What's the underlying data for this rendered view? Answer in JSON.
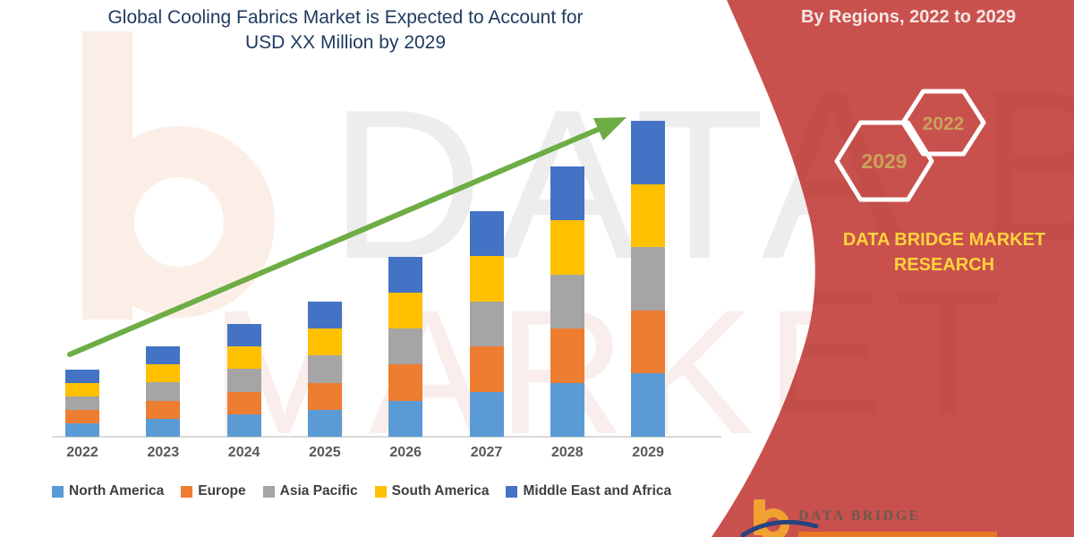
{
  "header": {
    "title_line1": "Global Cooling Fabrics Market is Expected to Account for",
    "title_line2": "USD XX Million by 2029",
    "banner": "By Regions, 2022 to 2029"
  },
  "side_panel": {
    "background_color": "#c9514d",
    "hexagons": [
      {
        "label": "2029"
      },
      {
        "label": "2022"
      }
    ],
    "brand_line1": "DATA BRIDGE MARKET",
    "brand_line2": "RESEARCH",
    "brand_color": "#ffd33c"
  },
  "watermark": {
    "line1": "DATA BRIDGE",
    "line2": "MARKET RESEARCH"
  },
  "footer": {
    "brand": "DATA BRIDGE",
    "logo_icon": "data-bridge-b-logo"
  },
  "chart_data": {
    "type": "bar",
    "stacked": true,
    "title": "Global Cooling Fabrics Market is Expected to Account for USD XX Million by 2029",
    "subtitle": "By Regions, 2022 to 2029",
    "categories": [
      "2022",
      "2023",
      "2024",
      "2025",
      "2026",
      "2027",
      "2028",
      "2029"
    ],
    "series": [
      {
        "name": "North America",
        "color": "#5b9bd5",
        "values": [
          15,
          20,
          25,
          30,
          40,
          50,
          60,
          70
        ]
      },
      {
        "name": "Europe",
        "color": "#ed7d31",
        "values": [
          15,
          20,
          25,
          30,
          40,
          50,
          60,
          70
        ]
      },
      {
        "name": "Asia Pacific",
        "color": "#a5a5a5",
        "values": [
          15,
          20,
          25,
          30,
          40,
          50,
          60,
          70
        ]
      },
      {
        "name": "South America",
        "color": "#ffc000",
        "values": [
          15,
          20,
          25,
          30,
          40,
          50,
          60,
          70
        ]
      },
      {
        "name": "Middle East and Africa",
        "color": "#4472c4",
        "values": [
          15,
          20,
          25,
          30,
          40,
          50,
          60,
          70
        ]
      }
    ],
    "totals": [
      75,
      100,
      125,
      150,
      200,
      250,
      300,
      350
    ],
    "values_note": "Y axis unlabeled (values masked as 'USD XX Million'); numbers are relative units read from bar heights",
    "ylim": [
      0,
      360
    ],
    "gridlines": false,
    "legend_position": "bottom",
    "trend_arrow_color": "#6ead45"
  }
}
